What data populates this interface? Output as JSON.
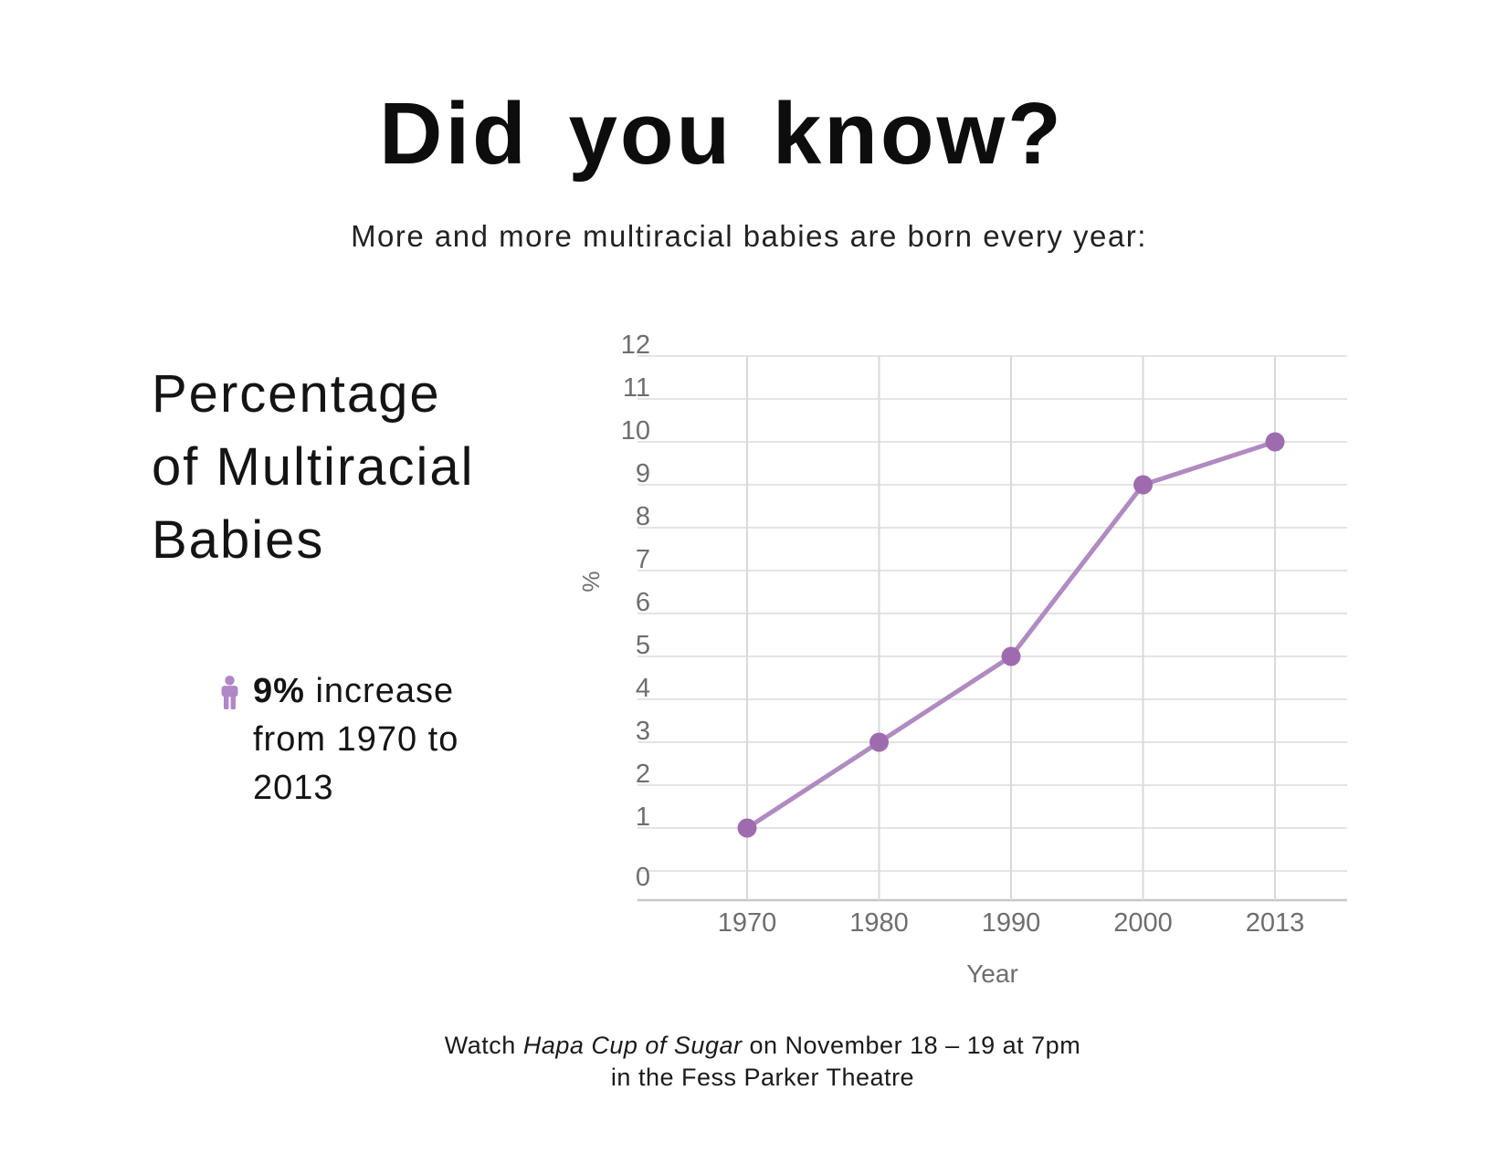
{
  "page": {
    "title": "Did you know?",
    "subtitle": "More and more multiracial babies are born every year:",
    "background_color": "#ffffff",
    "text_color": "#141414"
  },
  "left_panel": {
    "heading_lines": [
      "Percentage",
      "of Multiracial",
      "Babies"
    ],
    "bullet": {
      "icon": "person-icon",
      "icon_color": "#b287c6",
      "highlight": "9%",
      "rest": " increase",
      "line2": "from 1970 to",
      "line3": "2013"
    }
  },
  "footer": {
    "prefix": "Watch ",
    "show_title": "Hapa Cup of Sugar",
    "suffix": " on November 18 – 19 at 7pm",
    "line2": "in the Fess Parker Theatre"
  },
  "chart_data": {
    "type": "line",
    "categories": [
      "1970",
      "1980",
      "1990",
      "2000",
      "2013"
    ],
    "series": [
      {
        "name": "Percentage of multiracial babies",
        "values": [
          1,
          3,
          5,
          9,
          10
        ]
      }
    ],
    "xlabel": "Year",
    "ylabel": "%",
    "ylim": [
      0,
      12
    ],
    "y_ticks": [
      0,
      1,
      2,
      3,
      4,
      5,
      6,
      7,
      8,
      9,
      10,
      11,
      12
    ],
    "grid": true,
    "legend_position": "none",
    "line_color": "#b08ac0",
    "point_color": "#9e6cae",
    "h_gridline_color": "#e4e4e4",
    "v_gridline_color": "#d9d9d9",
    "axis_line_color": "#c8c8c8",
    "tick_label_color": "#6e6e6e"
  }
}
